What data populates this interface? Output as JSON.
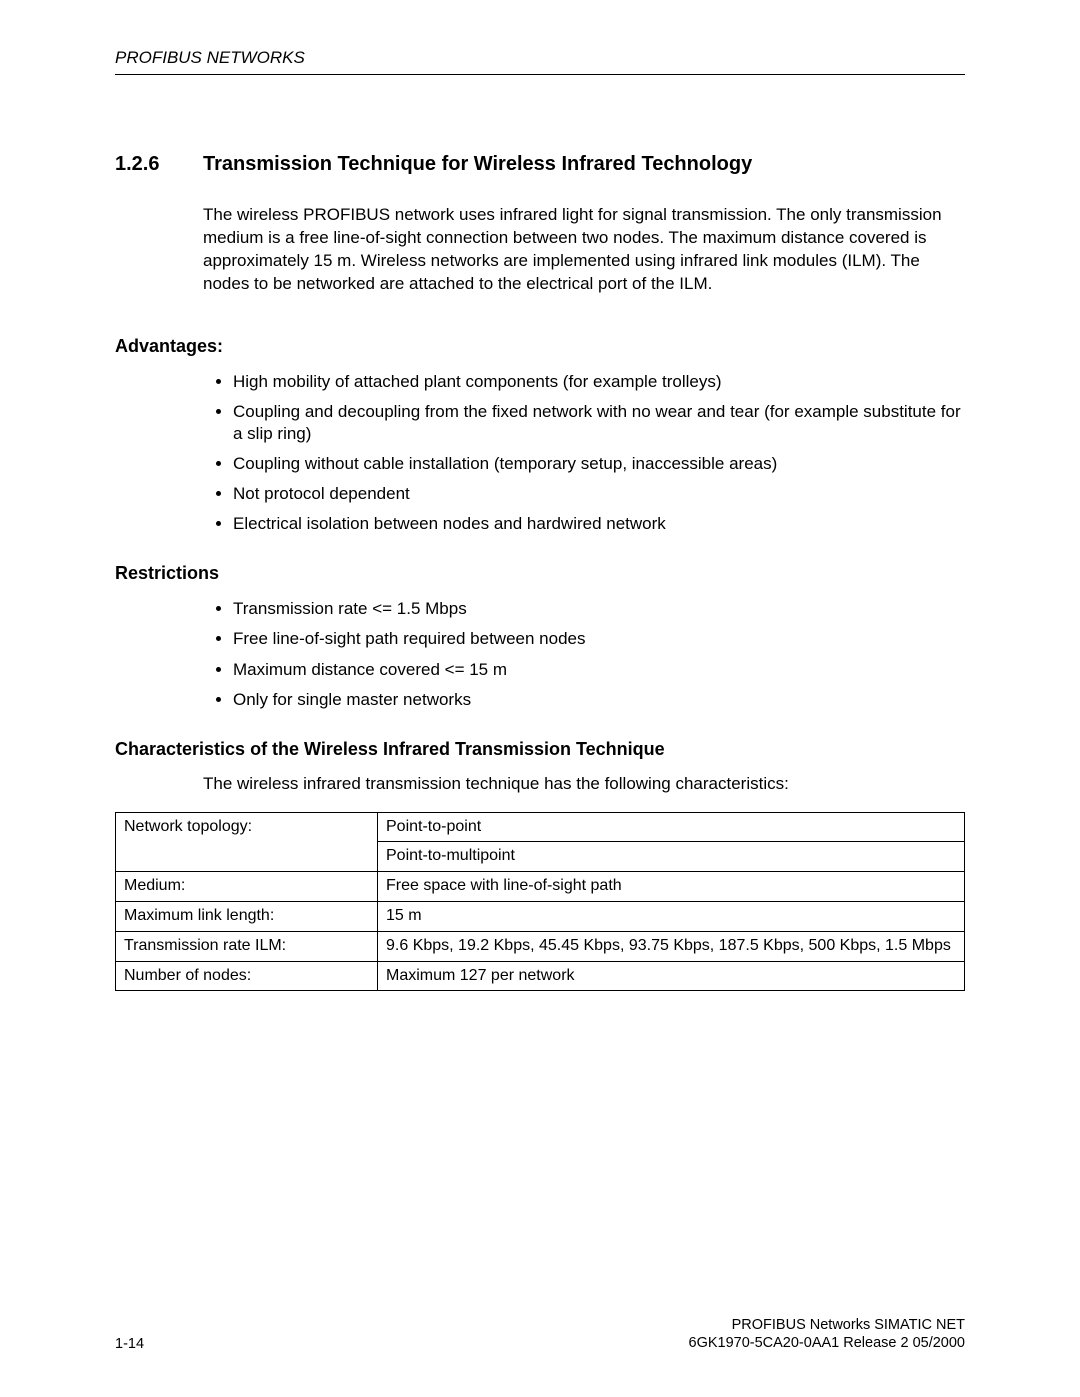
{
  "header": {
    "running_title": "PROFIBUS NETWORKS"
  },
  "section": {
    "number": "1.2.6",
    "title": "Transmission Technique for Wireless Infrared Technology",
    "intro_paragraph": "The wireless PROFIBUS network uses infrared light for signal transmission. The only transmission medium is a free line-of-sight connection between two nodes. The maximum distance covered is approximately 15 m. Wireless networks are implemented using infrared link modules (ILM). The nodes to be networked are attached to the electrical port of the ILM."
  },
  "advantages": {
    "heading": "Advantages:",
    "items": [
      "High mobility of attached plant components (for example trolleys)",
      "Coupling and decoupling from the fixed network with no wear and tear (for example substitute for a slip ring)",
      "Coupling without cable installation (temporary setup, inaccessible areas)",
      "Not protocol dependent",
      "Electrical isolation between nodes and hardwired network"
    ]
  },
  "restrictions": {
    "heading": "Restrictions",
    "items": [
      "Transmission rate <= 1.5 Mbps",
      "Free line-of-sight path required between nodes",
      "Maximum distance covered <= 15 m",
      "Only for single master networks"
    ]
  },
  "characteristics": {
    "heading": "Characteristics of the Wireless Infrared Transmission Technique",
    "intro": "The wireless infrared transmission technique has the following characteristics:",
    "rows": [
      {
        "label": "Network topology:",
        "value": "Point-to-point"
      },
      {
        "label": "",
        "value": "Point-to-multipoint"
      },
      {
        "label": "Medium:",
        "value": "Free space with line-of-sight path"
      },
      {
        "label": "Maximum link length:",
        "value": "15 m"
      },
      {
        "label": "Transmission rate ILM:",
        "value": "9.6 Kbps, 19.2 Kbps, 45.45 Kbps, 93.75 Kbps, 187.5 Kbps, 500 Kbps, 1.5 Mbps"
      },
      {
        "label": "Number of nodes:",
        "value": "Maximum 127 per network"
      }
    ]
  },
  "footer": {
    "page_number": "1-14",
    "line1": "PROFIBUS Networks SIMATIC NET",
    "line2": "6GK1970-5CA20-0AA1 Release 2 05/2000"
  }
}
